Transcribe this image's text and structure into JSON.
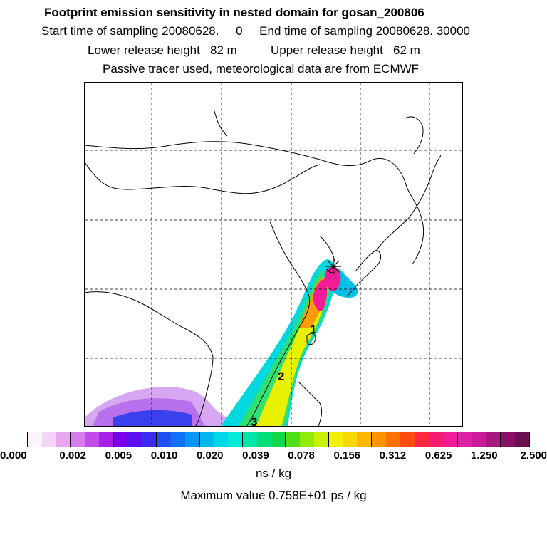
{
  "header": {
    "title": "Footprint emission sensitivity in nested domain for gosan_200806",
    "sampling": "Start time of sampling 20080628.     0     End time of sampling 20080628. 30000",
    "release": "Lower release height   82 m          Upper release height   62 m",
    "tracer": "Passive tracer used, meteorological data are from ECMWF"
  },
  "map": {
    "labels": [
      "1",
      "2",
      "3"
    ],
    "release_marker": "release-point-star"
  },
  "colorbar": {
    "tick_labels": [
      "0.000",
      "0.002",
      "0.005",
      "0.010",
      "0.020",
      "0.039",
      "0.078",
      "0.156",
      "0.312",
      "0.625",
      "1.250",
      "2.500"
    ],
    "colors": [
      "#fdf3fd",
      "#f4d4f8",
      "#e9a6f1",
      "#d67cee",
      "#c14ce8",
      "#a820e6",
      "#7a00ee",
      "#5a10f0",
      "#3a2cf2",
      "#2050f4",
      "#1070f6",
      "#0896f4",
      "#00b8ee",
      "#00d8e8",
      "#00ecd8",
      "#00e6aa",
      "#00de7a",
      "#10d84a",
      "#50de1a",
      "#90ea0a",
      "#c8f000",
      "#f0f000",
      "#f8d800",
      "#fcb800",
      "#fc9400",
      "#fc7000",
      "#fc4c10",
      "#fc2840",
      "#f81c70",
      "#f01c98",
      "#e020a8",
      "#c81c98",
      "#a81880",
      "#881068",
      "#681050"
    ],
    "unit": "ns / kg"
  },
  "footer": {
    "max_value": "Maximum value  0.758E+01 ps / kg"
  }
}
